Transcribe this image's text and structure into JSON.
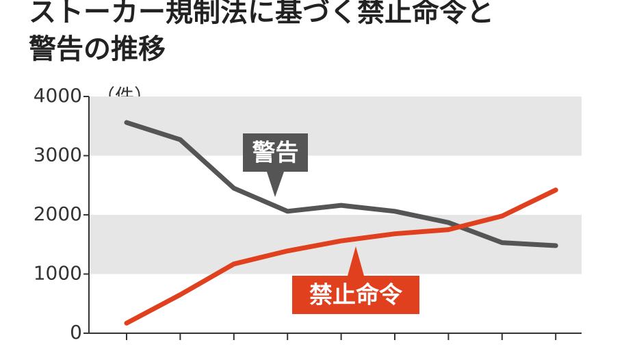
{
  "chart_data": {
    "type": "line",
    "title": "ストーカー規制法に基づく禁止命令と",
    "title_line2": "警告の推移",
    "y_unit": "（件）",
    "categories": [
      null,
      null,
      null,
      null,
      null,
      null,
      null,
      null,
      null
    ],
    "series": [
      {
        "name": "警告",
        "color": "#555555",
        "values": [
          3560,
          3270,
          2450,
          2060,
          2160,
          2060,
          1870,
          1530,
          1480
        ]
      },
      {
        "name": "禁止命令",
        "color": "#e0401e",
        "values": [
          170,
          650,
          1170,
          1390,
          1560,
          1680,
          1750,
          1980,
          2420
        ]
      }
    ],
    "ylim": [
      0,
      4000
    ],
    "yticks": [
      0,
      1000,
      2000,
      3000,
      4000
    ],
    "bands": true
  }
}
